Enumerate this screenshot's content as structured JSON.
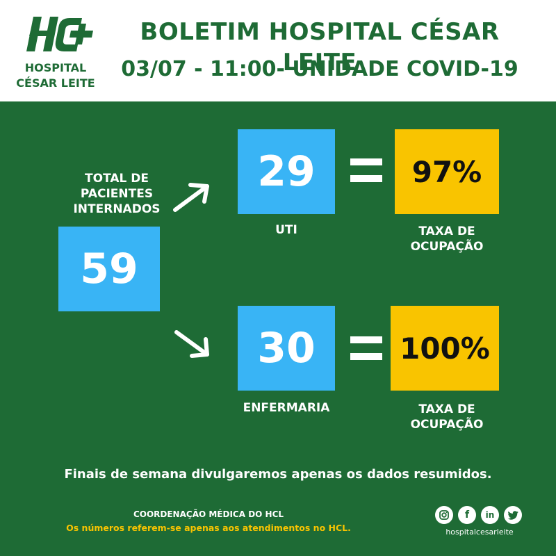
{
  "header": {
    "logo_text_line1": "HOSPITAL",
    "logo_text_line2": "CÉSAR LEITE",
    "title": "BOLETIM HOSPITAL CÉSAR LEITE",
    "subtitle": "03/07 - 11:00- UNIDADE COVID-19"
  },
  "total": {
    "label_line1": "TOTAL DE",
    "label_line2": "PACIENTES",
    "label_line3": "INTERNADOS",
    "value": "59"
  },
  "uti": {
    "value": "29",
    "label": "UTI",
    "rate": "97%",
    "rate_label_line1": "TAXA DE",
    "rate_label_line2": "OCUPAÇÃO"
  },
  "enfermaria": {
    "value": "30",
    "label": "ENFERMARIA",
    "rate": "100%",
    "rate_label_line1": "TAXA DE",
    "rate_label_line2": "OCUPAÇÃO"
  },
  "footer": {
    "note": "Finais de semana divulgaremos apenas os dados resumidos.",
    "coordination": "COORDENAÇÃO MÉDICA DO HCL",
    "disclaimer": "Os números referem-se apenas aos  atendimentos  no HCL.",
    "social_handle": "hospitalcesarleite",
    "social_icons": [
      "instagram-icon",
      "facebook-icon",
      "linkedin-icon",
      "twitter-icon"
    ]
  },
  "colors": {
    "green": "#1e6b35",
    "blue": "#39b4f5",
    "yellow": "#f9c400",
    "white": "#ffffff"
  }
}
